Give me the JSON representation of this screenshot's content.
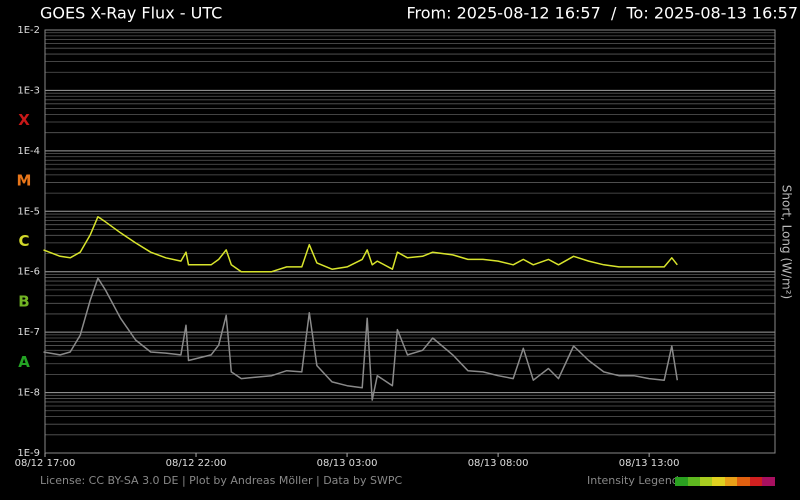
{
  "chart_data": {
    "type": "line",
    "title": "GOES X-Ray Flux - UTC",
    "subtitle": "From: 2025-08-12 16:57  /  To: 2025-08-13 16:57",
    "y_label": "Short, Long (W/m²)",
    "footer": "License: CC BY-SA 3.0 DE | Plot by Andreas Möller | Data by SWPC",
    "legend_label": "Intensity Legend",
    "log_y": true,
    "grid": true,
    "ylim": [
      1e-09,
      0.01
    ],
    "yticks": [
      {
        "value": 0.01,
        "label": "1E-2"
      },
      {
        "value": 0.001,
        "label": "1E-3"
      },
      {
        "value": 0.0001,
        "label": "1E-4"
      },
      {
        "value": 1e-05,
        "label": "1E-5"
      },
      {
        "value": 1e-06,
        "label": "1E-6"
      },
      {
        "value": 1e-07,
        "label": "1E-7"
      },
      {
        "value": 1e-08,
        "label": "1E-8"
      },
      {
        "value": 1e-09,
        "label": "1E-9"
      }
    ],
    "xlim": [
      "08/12 17:00",
      "08/13 17:10"
    ],
    "xticks": [
      "08/12 17:00",
      "08/12 22:00",
      "08/13 03:00",
      "08/13 08:00",
      "08/13 13:00"
    ],
    "classes": [
      {
        "label": "X",
        "color": "#c81818"
      },
      {
        "label": "M",
        "color": "#e8761a"
      },
      {
        "label": "C",
        "color": "#d2d82a"
      },
      {
        "label": "B",
        "color": "#72b424"
      },
      {
        "label": "A",
        "color": "#24a424"
      }
    ],
    "x": [
      "08/12 16:57",
      "08/12 17:30",
      "08/12 17:50",
      "08/12 18:10",
      "08/12 18:30",
      "08/12 18:45",
      "08/12 19:00",
      "08/12 19:30",
      "08/12 20:00",
      "08/12 20:30",
      "08/12 21:00",
      "08/12 21:30",
      "08/12 21:40",
      "08/12 21:45",
      "08/12 22:30",
      "08/12 22:45",
      "08/12 23:00",
      "08/12 23:10",
      "08/12 23:30",
      "08/13 00:30",
      "08/13 01:00",
      "08/13 01:30",
      "08/13 01:45",
      "08/13 02:00",
      "08/13 02:30",
      "08/13 03:00",
      "08/13 03:30",
      "08/13 03:40",
      "08/13 03:50",
      "08/13 04:00",
      "08/13 04:30",
      "08/13 04:40",
      "08/13 05:00",
      "08/13 05:30",
      "08/13 05:50",
      "08/13 06:30",
      "08/13 07:00",
      "08/13 07:30",
      "08/13 08:00",
      "08/13 08:30",
      "08/13 08:50",
      "08/13 09:10",
      "08/13 09:40",
      "08/13 10:00",
      "08/13 10:30",
      "08/13 11:00",
      "08/13 11:30",
      "08/13 12:00",
      "08/13 12:30",
      "08/13 13:00",
      "08/13 13:30",
      "08/13 13:45",
      "08/13 13:56"
    ],
    "series": [
      {
        "color": "#d8e42c",
        "values": [
          2.3e-06,
          1.8e-06,
          1.7e-06,
          2.1e-06,
          4.1e-06,
          8.1e-06,
          6.7e-06,
          4.4e-06,
          3e-06,
          2.1e-06,
          1.7e-06,
          1.5e-06,
          2.1e-06,
          1.3e-06,
          1.3e-06,
          1.6e-06,
          2.3e-06,
          1.3e-06,
          1e-06,
          1e-06,
          1.2e-06,
          1.2e-06,
          2.8e-06,
          1.4e-06,
          1.1e-06,
          1.2e-06,
          1.6e-06,
          2.3e-06,
          1.3e-06,
          1.5e-06,
          1.1e-06,
          2.1e-06,
          1.7e-06,
          1.8e-06,
          2.1e-06,
          1.9e-06,
          1.6e-06,
          1.6e-06,
          1.5e-06,
          1.3e-06,
          1.6e-06,
          1.3e-06,
          1.6e-06,
          1.3e-06,
          1.8e-06,
          1.5e-06,
          1.3e-06,
          1.2e-06,
          1.2e-06,
          1.2e-06,
          1.2e-06,
          1.7e-06,
          1.3e-06
        ]
      },
      {
        "color": "#8a8a8a",
        "values": [
          4.7e-08,
          4.2e-08,
          4.7e-08,
          8.9e-08,
          3.4e-07,
          7.8e-07,
          5e-07,
          1.7e-07,
          7.4e-08,
          4.7e-08,
          4.5e-08,
          4.2e-08,
          1.3e-07,
          3.4e-08,
          4.2e-08,
          6.1e-08,
          1.9e-07,
          2.2e-08,
          1.7e-08,
          1.9e-08,
          2.3e-08,
          2.2e-08,
          2.1e-07,
          2.8e-08,
          1.5e-08,
          1.3e-08,
          1.2e-08,
          1.7e-07,
          7.5e-09,
          1.9e-08,
          1.3e-08,
          1.1e-07,
          4.2e-08,
          5e-08,
          8e-08,
          4.2e-08,
          2.3e-08,
          2.2e-08,
          1.9e-08,
          1.7e-08,
          5.4e-08,
          1.6e-08,
          2.5e-08,
          1.7e-08,
          5.9e-08,
          3.4e-08,
          2.2e-08,
          1.9e-08,
          1.9e-08,
          1.7e-08,
          1.6e-08,
          5.9e-08,
          1.6e-08
        ]
      }
    ]
  }
}
